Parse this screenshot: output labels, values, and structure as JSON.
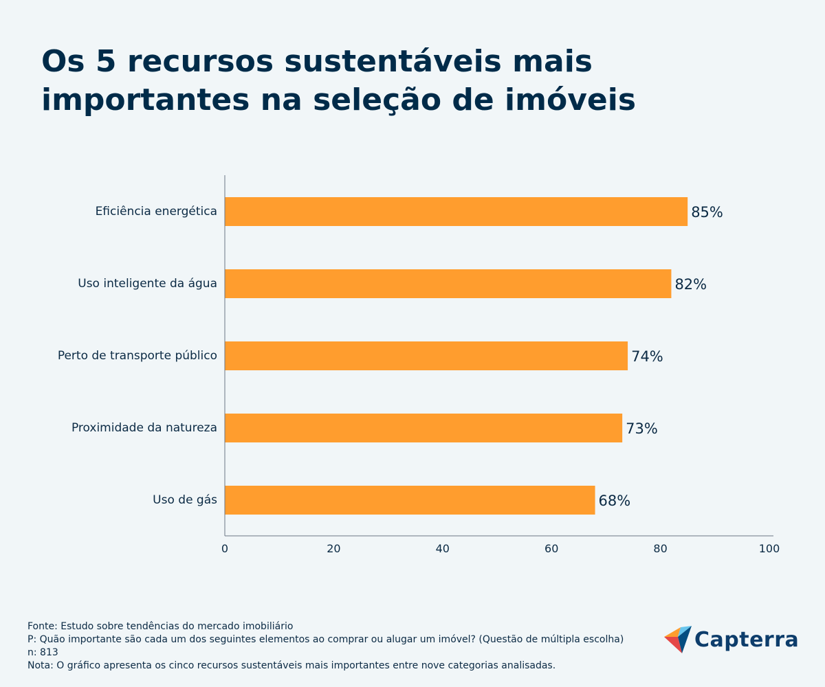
{
  "title_lines": [
    "Os 5 recursos sustentáveis mais",
    "importantes na seleção de imóveis"
  ],
  "chart_data": {
    "type": "bar",
    "orientation": "horizontal",
    "categories": [
      "Eficiência energética",
      "Uso inteligente da água",
      "Perto de transporte público",
      "Proximidade da natureza",
      "Uso de gás"
    ],
    "values": [
      85,
      82,
      74,
      73,
      68
    ],
    "value_labels": [
      "85%",
      "82%",
      "74%",
      "73%",
      "68%"
    ],
    "xlim": [
      0,
      100
    ],
    "xticks": [
      0,
      20,
      40,
      60,
      80,
      100
    ],
    "bar_color": "#ff9d2e",
    "grid": false,
    "legend": false
  },
  "footer": {
    "source": "Fonte: Estudo sobre tendências do mercado imobiliário",
    "question": "P: Quão importante são cada um dos seguintes elementos ao comprar ou alugar um imóvel? (Questão de múltipla escolha)",
    "n": "n: 813",
    "note": "Nota: O gráfico apresenta os cinco recursos sustentáveis mais importantes entre nove categorias analisadas."
  },
  "logo": {
    "text": "Capterra",
    "icon": "capterra-logo-icon"
  }
}
